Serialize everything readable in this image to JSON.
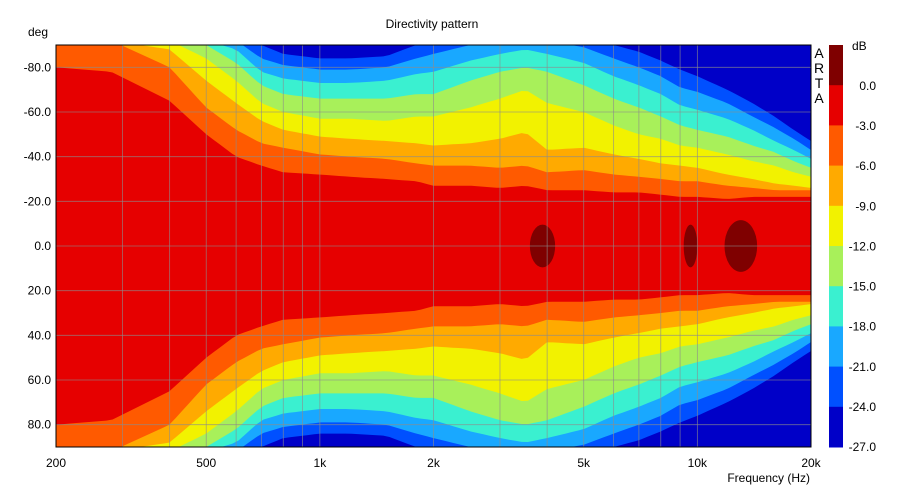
{
  "chart_data": {
    "type": "heatmap",
    "title": "Directivity pattern",
    "xlabel": "Frequency (Hz)",
    "ylabel": "deg",
    "x_scale": "log",
    "xlim": [
      200,
      20000
    ],
    "ylim": [
      90,
      -90
    ],
    "x_ticks": [
      {
        "value": 200,
        "label": "200"
      },
      {
        "value": 500,
        "label": "500"
      },
      {
        "value": 1000,
        "label": "1k"
      },
      {
        "value": 2000,
        "label": "2k"
      },
      {
        "value": 5000,
        "label": "5k"
      },
      {
        "value": 10000,
        "label": "10k"
      },
      {
        "value": 20000,
        "label": "20k"
      }
    ],
    "y_ticks": [
      {
        "value": -80,
        "label": "-80.0"
      },
      {
        "value": -60,
        "label": "-60.0"
      },
      {
        "value": -40,
        "label": "-40.0"
      },
      {
        "value": -20,
        "label": "-20.0"
      },
      {
        "value": 0,
        "label": "0.0"
      },
      {
        "value": 20,
        "label": "20.0"
      },
      {
        "value": 40,
        "label": "40.0"
      },
      {
        "value": 60,
        "label": "60.0"
      },
      {
        "value": 80,
        "label": "80.0"
      }
    ],
    "grid": true,
    "watermark": [
      "A",
      "R",
      "T",
      "A"
    ],
    "colorbar": {
      "unit": "dB",
      "levels": [
        0.0,
        -3.0,
        -6.0,
        -9.0,
        -12.0,
        -15.0,
        -18.0,
        -21.0,
        -24.0,
        -27.0
      ],
      "labels": [
        "0.0",
        "-3.0",
        "-6.0",
        "-9.0",
        "-12.0",
        "-15.0",
        "-18.0",
        "-21.0",
        "-24.0",
        "-27.0"
      ],
      "colors": [
        "#7f0000",
        "#e60000",
        "#ff5a00",
        "#ffaa00",
        "#f2f200",
        "#a8f05a",
        "#3af0d0",
        "#19a8ff",
        "#0050ff",
        "#0000c8"
      ]
    },
    "half_width_deg": {
      "freqs": [
        200,
        280,
        400,
        500,
        600,
        700,
        800,
        1000,
        1200,
        1500,
        1800,
        2000,
        2500,
        3000,
        3500,
        4000,
        5000,
        6000,
        7000,
        8000,
        9000,
        10000,
        12000,
        14000,
        16000,
        18000,
        20000
      ],
      "db_3": [
        80,
        78,
        65,
        50,
        40,
        36,
        33,
        32,
        31,
        30,
        29,
        27,
        27,
        26,
        27,
        25,
        25,
        24,
        24,
        23,
        22,
        22,
        21,
        22,
        22,
        22,
        22
      ],
      "db_6": [
        92,
        92,
        80,
        62,
        52,
        46,
        44,
        41,
        40,
        39,
        37,
        36,
        36,
        35,
        36,
        33,
        34,
        32,
        31,
        30,
        29,
        29,
        27,
        26,
        25,
        25,
        25
      ],
      "db_9": [
        92,
        92,
        88,
        74,
        64,
        56,
        52,
        49,
        48,
        47,
        46,
        45,
        46,
        48,
        51,
        43,
        44,
        41,
        39,
        37,
        36,
        35,
        32,
        30,
        28,
        27,
        26
      ],
      "db_12": [
        92,
        92,
        92,
        84,
        74,
        64,
        60,
        57,
        57,
        56,
        58,
        58,
        62,
        66,
        70,
        64,
        60,
        54,
        50,
        48,
        45,
        44,
        41,
        38,
        36,
        33,
        31
      ],
      "db_15": [
        92,
        92,
        92,
        90,
        82,
        72,
        68,
        66,
        66,
        66,
        68,
        68,
        74,
        78,
        80,
        78,
        72,
        66,
        62,
        58,
        54,
        52,
        49,
        45,
        42,
        38,
        35
      ],
      "db_18": [
        92,
        92,
        92,
        92,
        88,
        78,
        75,
        73,
        73,
        74,
        77,
        78,
        83,
        86,
        88,
        86,
        82,
        76,
        72,
        68,
        63,
        61,
        57,
        52,
        47,
        43,
        39
      ],
      "db_21": [
        92,
        92,
        92,
        92,
        92,
        84,
        81,
        79,
        79,
        80,
        84,
        86,
        90,
        92,
        92,
        92,
        89,
        84,
        80,
        76,
        71,
        69,
        64,
        58,
        53,
        48,
        43
      ],
      "db_24": [
        92,
        92,
        92,
        92,
        92,
        90,
        86,
        84,
        84,
        85,
        90,
        92,
        92,
        92,
        92,
        92,
        92,
        90,
        87,
        83,
        79,
        76,
        70,
        64,
        58,
        52,
        47
      ]
    },
    "hotspots": [
      {
        "freq": 3900,
        "deg": 0,
        "freq_span": [
          3600,
          4200
        ],
        "deg_span": [
          -6,
          6
        ],
        "level": 0.0
      },
      {
        "freq": 9600,
        "deg": 0,
        "freq_span": [
          9200,
          10000
        ],
        "deg_span": [
          -6,
          6
        ],
        "level": 0.0
      },
      {
        "freq": 13000,
        "deg": 0,
        "freq_span": [
          11800,
          14400
        ],
        "deg_span": [
          -8,
          8
        ],
        "level": 0.0
      }
    ]
  }
}
